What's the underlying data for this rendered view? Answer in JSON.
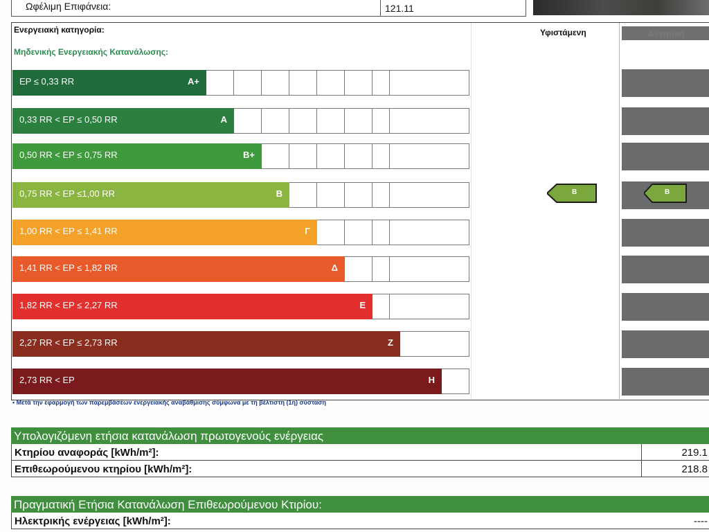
{
  "header": {
    "useful_area_label": "Ωφέλιμη Επιφάνεια:",
    "useful_area_value": "121.11"
  },
  "category": {
    "title": "Ενεργειακή κατηγορία:",
    "zero_consumption": "Μηδενικής Ενεργειακής Κατανάλωσης:",
    "col_existing": "Υφιστάμενη",
    "col_potential": "Δυνητική"
  },
  "scale": [
    {
      "range": "EP ≤ 0,33 RR",
      "letter": "A+",
      "color": "#1f6b3a",
      "level": 1
    },
    {
      "range": "0,33 RR < EP ≤ 0,50 RR",
      "letter": "A",
      "color": "#2b8040",
      "level": 2
    },
    {
      "range": "0,50 RR < EP ≤ 0,75 RR",
      "letter": "B+",
      "color": "#3f9a3d",
      "level": 3
    },
    {
      "range": "0,75 RR < EP ≤1,00 RR",
      "letter": "B",
      "color": "#8ab540",
      "level": 4
    },
    {
      "range": "1,00 RR < EP ≤ 1,41 RR",
      "letter": "Γ",
      "color": "#f3a129",
      "level": 5
    },
    {
      "range": "1,41 RR < EP ≤ 1,82 RR",
      "letter": "Δ",
      "color": "#e85a2a",
      "level": 6
    },
    {
      "range": "1,82 RR < EP ≤ 2,27 RR",
      "letter": "E",
      "color": "#e2302f",
      "level": 7
    },
    {
      "range": "2,27 RR < EP ≤ 2,73 RR",
      "letter": "Z",
      "color": "#8a2c1e",
      "level": 8
    },
    {
      "range": "2,73 RR < EP",
      "letter": "H",
      "color": "#7a1a1c",
      "level": 9
    }
  ],
  "rating": {
    "existing": "B",
    "potential": "B",
    "badge_color": "#7aa83d"
  },
  "footnote": "• Μετά την εφαρμογή των παρεμβάσεων ενεργειακής αναβάθμισης σύμφωνα με τη βέλτιστη (1η) σύσταση",
  "primary_energy": {
    "heading": "Υπολογιζόμενη ετήσια κατανάλωση πρωτογενούς ενέργειας",
    "reference_label": "Κτηρίου αναφοράς [kWh/m²]:",
    "reference_value": "219.1",
    "inspected_label": "Επιθεωρούμενου κτηρίου [kWh/m²]:",
    "inspected_value": "218.8"
  },
  "actual_consumption": {
    "heading": "Πραγματική Ετήσια Κατανάλωση Επιθεωρούμενου Κτιρίου:",
    "electric_label": "Ηλεκτρικής ενέργειας [kWh/m²]:",
    "electric_value": "----"
  }
}
